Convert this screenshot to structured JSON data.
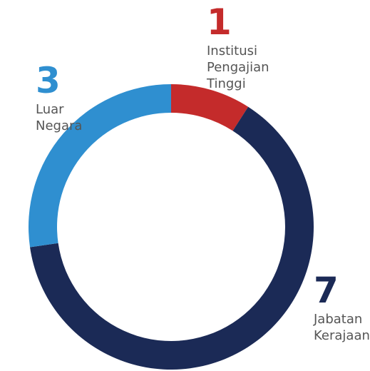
{
  "chart_data": {
    "type": "donut",
    "categories": [
      "Institusi Pengajian Tinggi",
      "Jabatan Kerajaan",
      "Luar Negara"
    ],
    "values": [
      1,
      7,
      3
    ],
    "colors": [
      "#c42b2b",
      "#1b2a56",
      "#2f8fd0"
    ]
  }
}
